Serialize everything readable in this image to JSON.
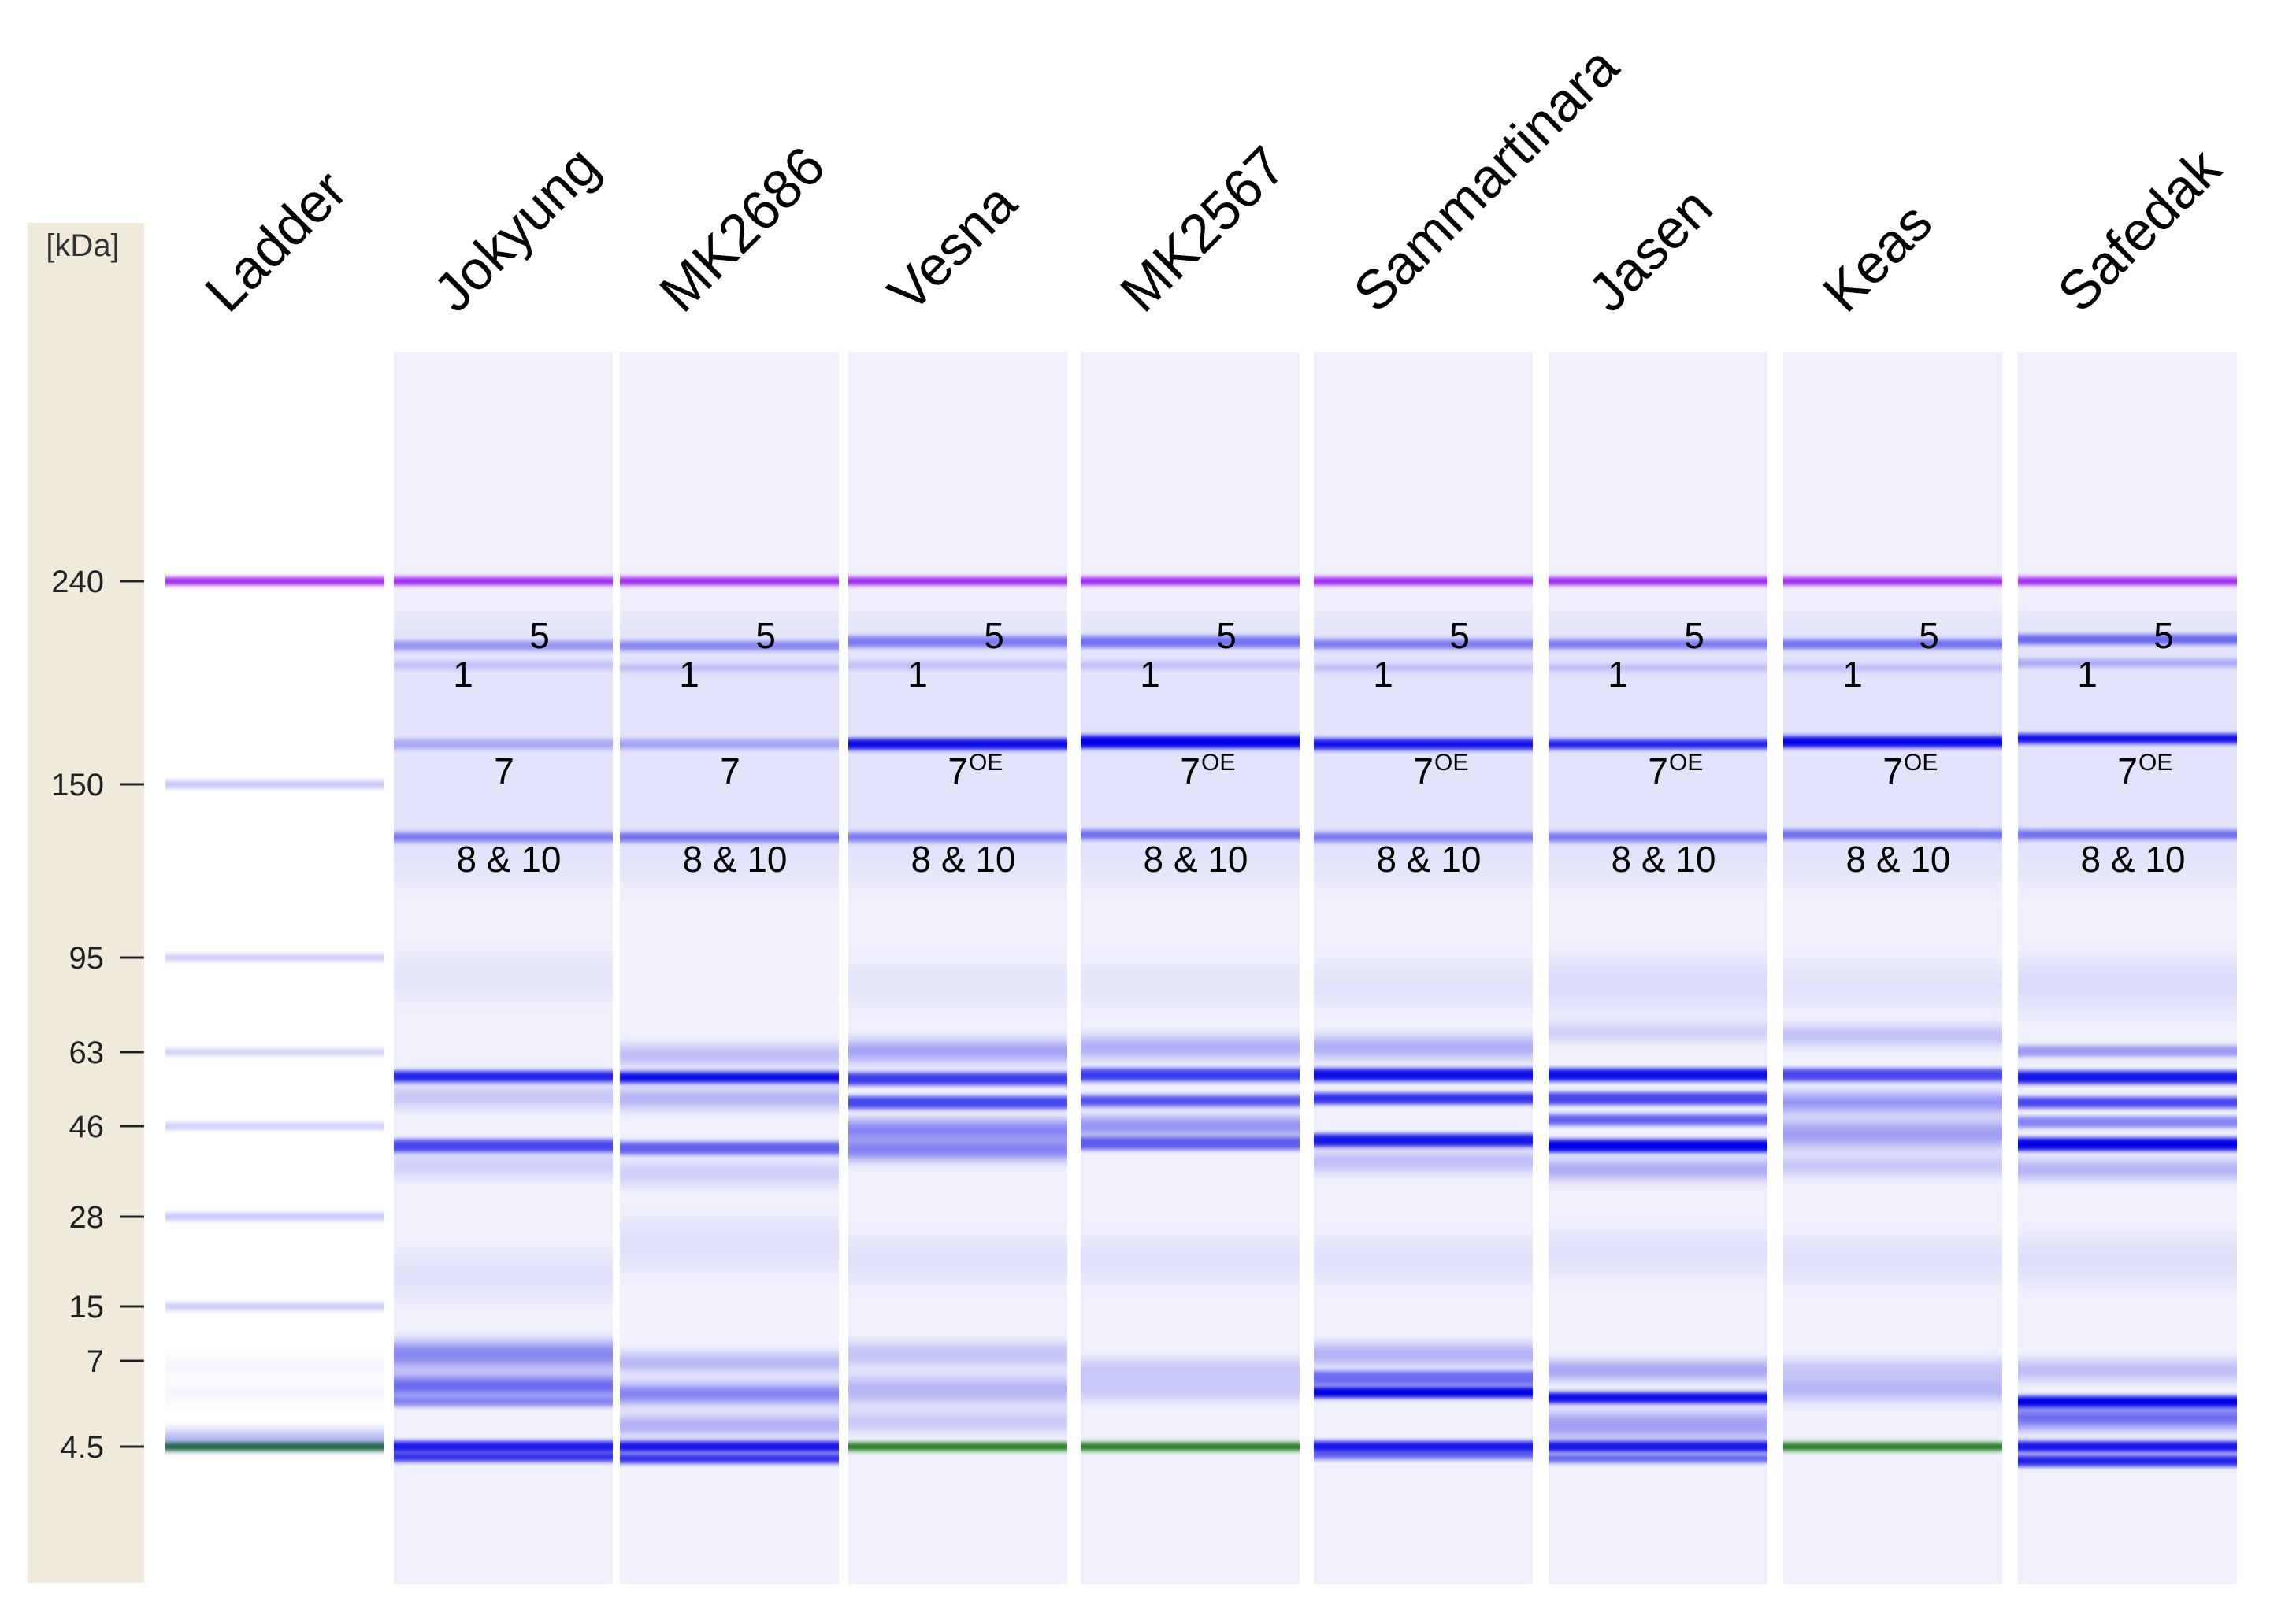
{
  "axis": {
    "unit_label": "[kDa]",
    "ticks": [
      {
        "label": "240",
        "kda": 240
      },
      {
        "label": "150",
        "kda": 150
      },
      {
        "label": "95",
        "kda": 95
      },
      {
        "label": "63",
        "kda": 63
      },
      {
        "label": "46",
        "kda": 46
      },
      {
        "label": "28",
        "kda": 28
      },
      {
        "label": "15",
        "kda": 15
      },
      {
        "label": "7",
        "kda": 7
      },
      {
        "label": "4.5",
        "kda": 4.5
      }
    ]
  },
  "lanes": [
    {
      "name": "Ladder",
      "is_ladder": true
    },
    {
      "name": "Jokyung",
      "seven_label": "7",
      "seven_oe": false
    },
    {
      "name": "MK2686",
      "seven_label": "7",
      "seven_oe": false
    },
    {
      "name": "Vesna",
      "seven_label": "7",
      "seven_oe": true
    },
    {
      "name": "MK2567",
      "seven_label": "7",
      "seven_oe": true
    },
    {
      "name": "Sammartinara",
      "seven_label": "7",
      "seven_oe": true
    },
    {
      "name": "Jasen",
      "seven_label": "7",
      "seven_oe": true
    },
    {
      "name": "Keas",
      "seven_label": "7",
      "seven_oe": true
    },
    {
      "name": "Safedak",
      "seven_label": "7",
      "seven_oe": true
    }
  ],
  "annotations": {
    "band_5": "5",
    "band_1": "1",
    "band_7_superscript": "OE",
    "band_8_10": "8 & 10"
  },
  "colors": {
    "axis_panel": "#f0eadb",
    "lane_bg": "#f0f0fc",
    "band_blue": "#0000e6",
    "upper_marker": "#a020f0",
    "lower_marker": "#1a7a1a"
  }
}
